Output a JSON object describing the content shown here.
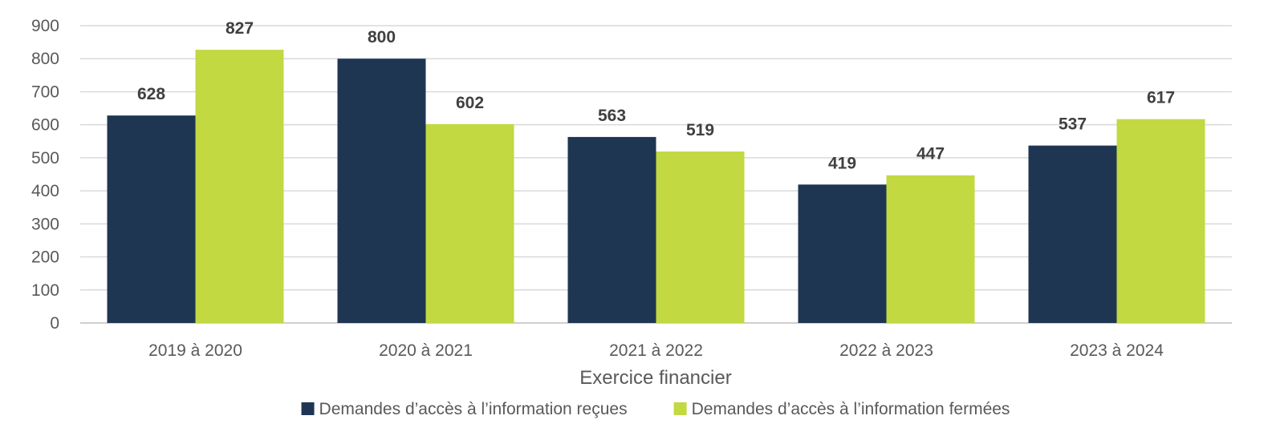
{
  "chart_data": {
    "type": "bar",
    "categories": [
      "2019 à 2020",
      "2020 à 2021",
      "2021 à 2022",
      "2022 à 2023",
      "2023 à 2024"
    ],
    "series": [
      {
        "name": "Demandes d’accès à l’information reçues",
        "values": [
          628,
          800,
          563,
          419,
          537
        ],
        "color": "#1f3653"
      },
      {
        "name": "Demandes d’accès à l’information fermées",
        "values": [
          827,
          602,
          519,
          447,
          617
        ],
        "color": "#c2d942"
      }
    ],
    "title": "",
    "xlabel": "Exercice financier",
    "ylabel": "",
    "ylim": [
      0,
      900
    ],
    "yticks": [
      0,
      100,
      200,
      300,
      400,
      500,
      600,
      700,
      800,
      900
    ],
    "grid": true,
    "legend": "bottom",
    "data_labels": true
  }
}
